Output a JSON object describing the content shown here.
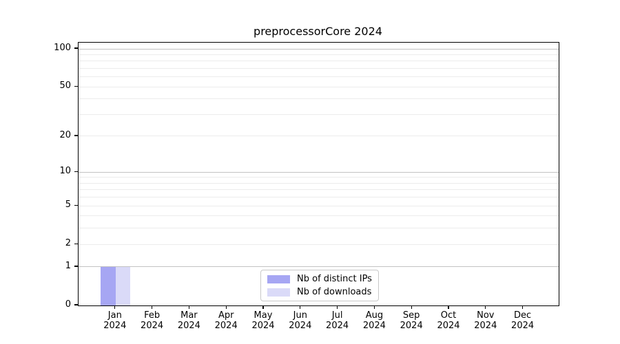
{
  "title": "preprocessorCore 2024",
  "legend": {
    "position": "lower center",
    "items": [
      {
        "label": "Nb of distinct IPs",
        "color": "#a6a6f3"
      },
      {
        "label": "Nb of downloads",
        "color": "#dadaf8"
      }
    ]
  },
  "colors": {
    "axis": "#000000",
    "text": "#000000",
    "background": "#ffffff",
    "grid_major": "#c2c2c2",
    "grid_minor": "#ececec",
    "legend_border": "#c8c8c8"
  },
  "chart_data": {
    "type": "bar",
    "title": "preprocessorCore 2024",
    "xlabel": "",
    "ylabel": "",
    "grid": "on",
    "legend_position": "lower center",
    "y_scale": "symlog (position ~ log(1+v))",
    "ylim": [
      0,
      112
    ],
    "y_tick_values": [
      100,
      50,
      20,
      10,
      5,
      2,
      1,
      0
    ],
    "y_tick_labels": [
      "100",
      "50",
      "20",
      "10",
      "5",
      "2",
      "1",
      "0"
    ],
    "y_major_gridlines": [
      1,
      10,
      100
    ],
    "y_minor_gridlines": [
      2,
      3,
      4,
      5,
      6,
      7,
      8,
      9,
      20,
      30,
      40,
      50,
      60,
      70,
      80,
      90
    ],
    "categories": [
      "Jan 2024",
      "Feb 2024",
      "Mar 2024",
      "Apr 2024",
      "May 2024",
      "Jun 2024",
      "Jul 2024",
      "Aug 2024",
      "Sep 2024",
      "Oct 2024",
      "Nov 2024",
      "Dec 2024"
    ],
    "series": [
      {
        "name": "Nb of distinct IPs",
        "color": "#a6a6f3",
        "values": [
          1,
          0,
          0,
          0,
          0,
          0,
          0,
          0,
          0,
          0,
          0,
          0
        ]
      },
      {
        "name": "Nb of downloads",
        "color": "#dadaf8",
        "values": [
          1,
          0,
          0,
          0,
          0,
          0,
          0,
          0,
          0,
          0,
          0,
          0
        ]
      }
    ]
  }
}
